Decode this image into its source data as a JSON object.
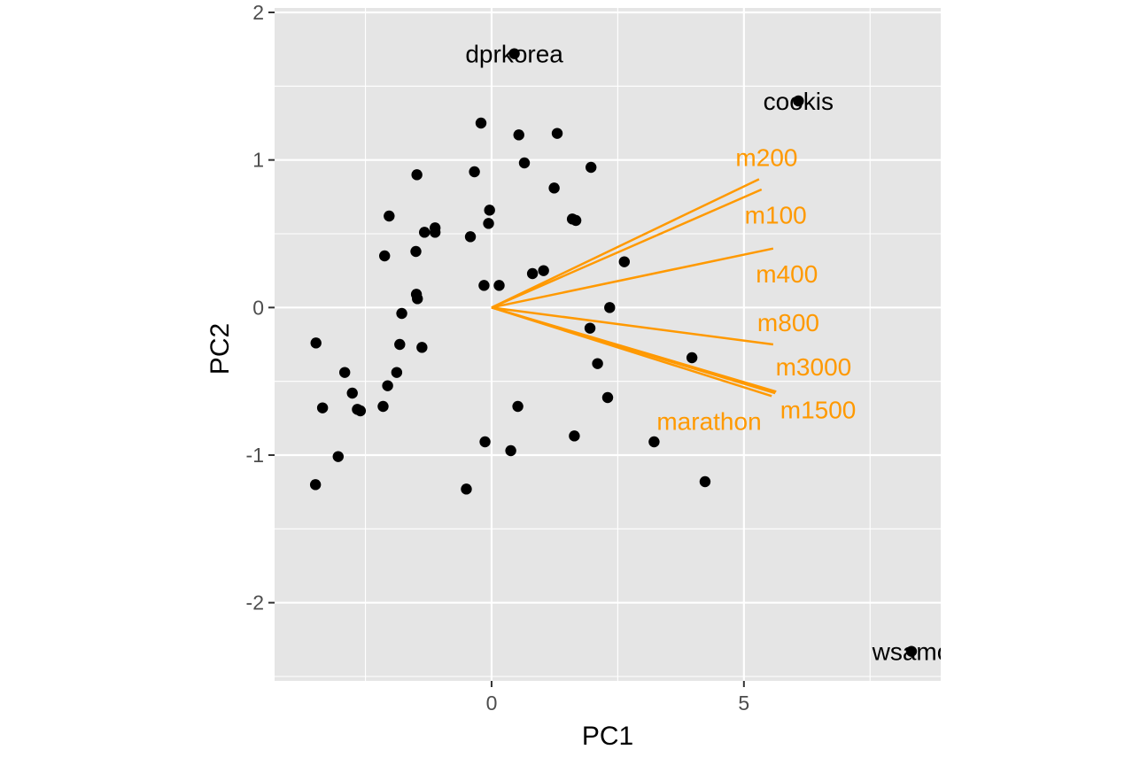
{
  "chart_data": {
    "type": "scatter",
    "xlabel": "PC1",
    "ylabel": "PC2",
    "xlim": [
      -4.3,
      8.9
    ],
    "ylim": [
      -2.53,
      2.03
    ],
    "x_ticks": [
      0,
      5
    ],
    "y_ticks": [
      -2,
      -1,
      0,
      1,
      2
    ],
    "x_ticks_display": [
      "0",
      "5"
    ],
    "y_ticks_display": [
      "-2",
      "-1",
      "0",
      "1",
      "2"
    ],
    "grid": true,
    "colors": {
      "panel_background": "#e5e5e5",
      "grid": "#ffffff",
      "points": "#000000",
      "loadings": "#ff9900"
    },
    "points": [
      {
        "x": 0.45,
        "y": 1.72,
        "label": "dprkorea"
      },
      {
        "x": 6.08,
        "y": 1.4,
        "label": "cookis"
      },
      {
        "x": 8.32,
        "y": -2.33,
        "label": "wsamo"
      },
      {
        "x": -0.21,
        "y": 1.25
      },
      {
        "x": 0.54,
        "y": 1.17
      },
      {
        "x": 1.3,
        "y": 1.18
      },
      {
        "x": 0.65,
        "y": 0.98
      },
      {
        "x": 1.97,
        "y": 0.95
      },
      {
        "x": -0.34,
        "y": 0.92
      },
      {
        "x": -1.48,
        "y": 0.9
      },
      {
        "x": 1.24,
        "y": 0.81
      },
      {
        "x": -0.04,
        "y": 0.66
      },
      {
        "x": -2.03,
        "y": 0.62
      },
      {
        "x": 1.6,
        "y": 0.6
      },
      {
        "x": 1.67,
        "y": 0.59
      },
      {
        "x": -0.06,
        "y": 0.57
      },
      {
        "x": -1.12,
        "y": 0.54
      },
      {
        "x": -1.33,
        "y": 0.51
      },
      {
        "x": -1.12,
        "y": 0.51
      },
      {
        "x": -0.42,
        "y": 0.48
      },
      {
        "x": -1.5,
        "y": 0.38
      },
      {
        "x": -2.12,
        "y": 0.35
      },
      {
        "x": 2.63,
        "y": 0.31
      },
      {
        "x": 1.03,
        "y": 0.25
      },
      {
        "x": 0.81,
        "y": 0.23
      },
      {
        "x": -0.15,
        "y": 0.15
      },
      {
        "x": 0.15,
        "y": 0.15
      },
      {
        "x": -1.49,
        "y": 0.09
      },
      {
        "x": -1.47,
        "y": 0.06
      },
      {
        "x": 2.34,
        "y": 0.0
      },
      {
        "x": -1.78,
        "y": -0.04
      },
      {
        "x": 1.95,
        "y": -0.14
      },
      {
        "x": -3.48,
        "y": -0.24
      },
      {
        "x": -1.82,
        "y": -0.25
      },
      {
        "x": -1.38,
        "y": -0.27
      },
      {
        "x": 3.97,
        "y": -0.34
      },
      {
        "x": 2.1,
        "y": -0.38
      },
      {
        "x": -2.91,
        "y": -0.44
      },
      {
        "x": -1.88,
        "y": -0.44
      },
      {
        "x": -2.06,
        "y": -0.53
      },
      {
        "x": -2.76,
        "y": -0.58
      },
      {
        "x": 2.3,
        "y": -0.61
      },
      {
        "x": -3.35,
        "y": -0.68
      },
      {
        "x": 0.52,
        "y": -0.67
      },
      {
        "x": -2.66,
        "y": -0.69
      },
      {
        "x": -2.6,
        "y": -0.7
      },
      {
        "x": -2.15,
        "y": -0.67
      },
      {
        "x": 1.64,
        "y": -0.87
      },
      {
        "x": -0.13,
        "y": -0.91
      },
      {
        "x": 3.22,
        "y": -0.91
      },
      {
        "x": 0.38,
        "y": -0.97
      },
      {
        "x": -3.04,
        "y": -1.01
      },
      {
        "x": 4.23,
        "y": -1.18
      },
      {
        "x": -3.49,
        "y": -1.2
      },
      {
        "x": -0.5,
        "y": -1.23
      }
    ],
    "loadings": [
      {
        "name": "m200",
        "x": 5.3,
        "y": 0.87,
        "label_x": 5.45,
        "label_y": 1.02
      },
      {
        "name": "m100",
        "x": 5.35,
        "y": 0.8,
        "label_x": 5.63,
        "label_y": 0.63
      },
      {
        "name": "m400",
        "x": 5.58,
        "y": 0.4,
        "label_x": 5.85,
        "label_y": 0.23
      },
      {
        "name": "m800",
        "x": 5.58,
        "y": -0.25,
        "label_x": 5.88,
        "label_y": -0.1
      },
      {
        "name": "m3000",
        "x": 5.64,
        "y": -0.57,
        "label_x": 6.38,
        "label_y": -0.4
      },
      {
        "name": "m1500",
        "x": 5.55,
        "y": -0.6,
        "label_x": 6.47,
        "label_y": -0.69
      },
      {
        "name": "marathon",
        "x": 5.62,
        "y": -0.58,
        "label_x": 4.31,
        "label_y": -0.77
      }
    ]
  }
}
